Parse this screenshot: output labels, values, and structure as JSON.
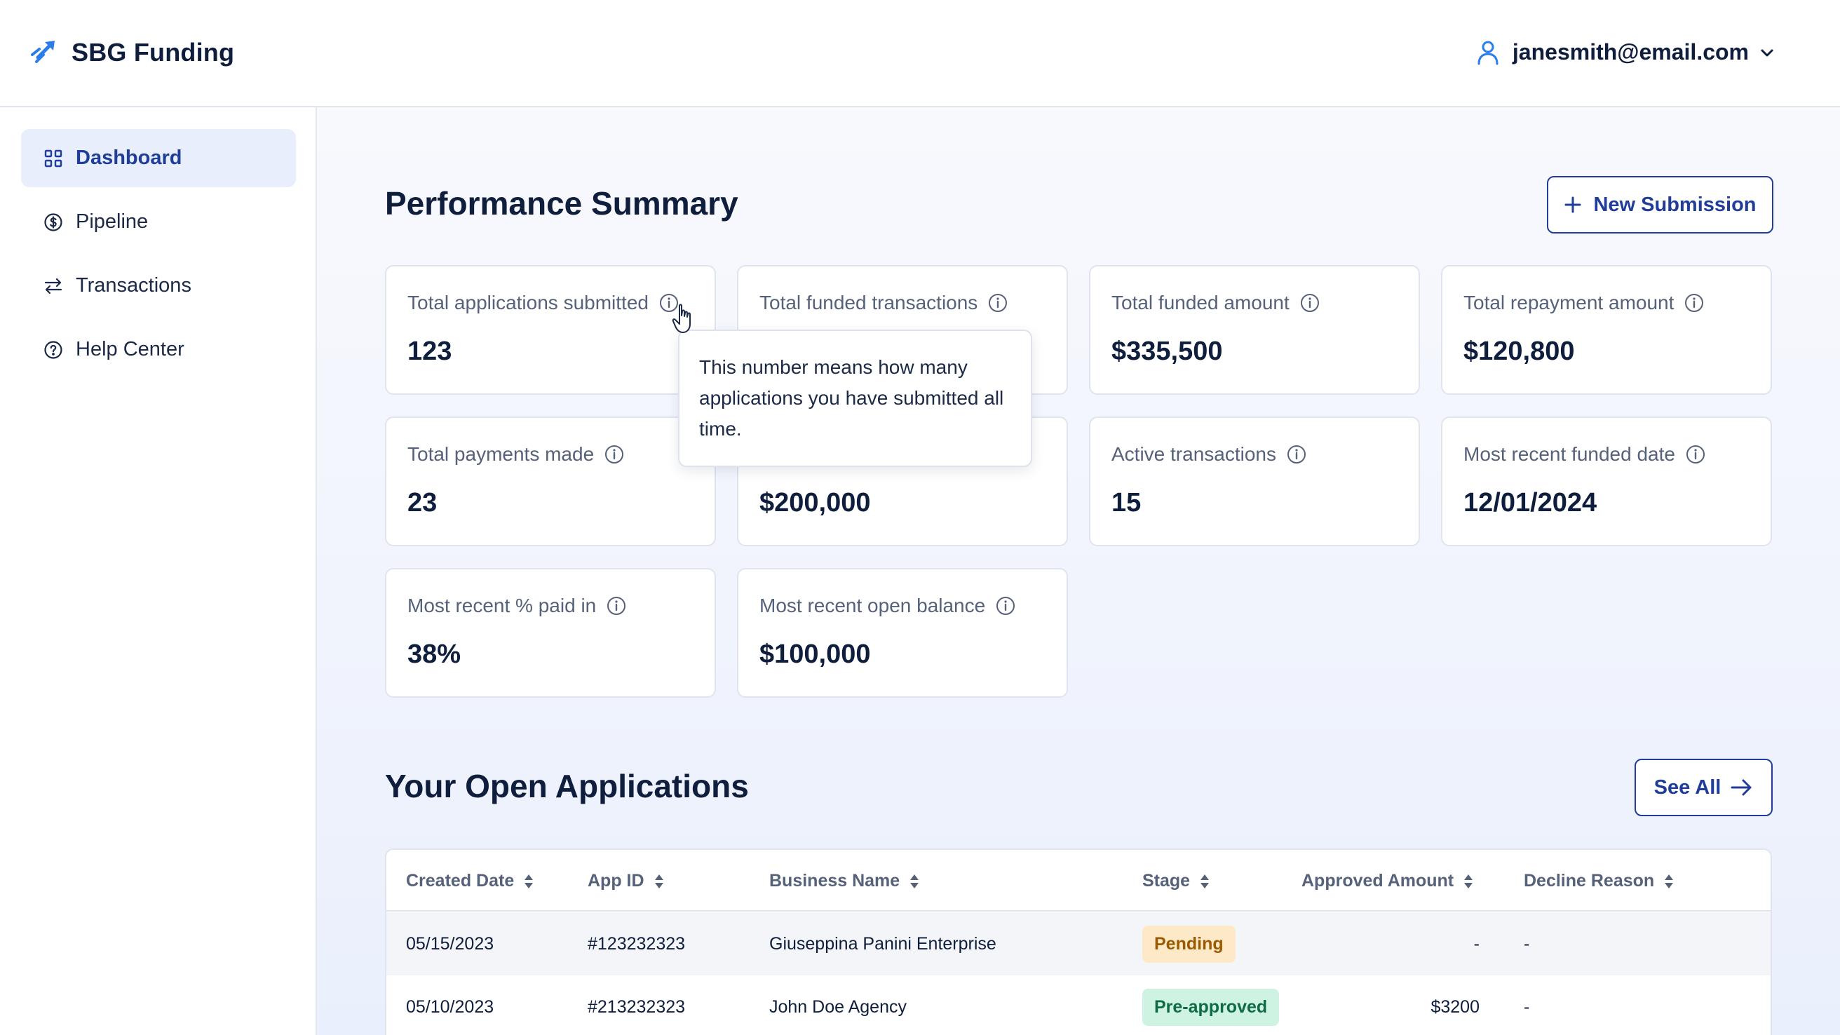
{
  "app": {
    "name": "SBG Funding"
  },
  "user": {
    "email": "janesmith@email.com"
  },
  "sidebar": {
    "items": [
      {
        "label": "Dashboard",
        "icon": "grid-icon",
        "active": true
      },
      {
        "label": "Pipeline",
        "icon": "dollar-circle-icon",
        "active": false
      },
      {
        "label": "Transactions",
        "icon": "arrows-exchange-icon",
        "active": false
      },
      {
        "label": "Help Center",
        "icon": "question-circle-icon",
        "active": false
      }
    ]
  },
  "performance": {
    "title": "Performance Summary",
    "new_submission_label": "New Submission",
    "cards": [
      {
        "label": "Total applications submitted",
        "value": "123"
      },
      {
        "label": "Total funded transactions",
        "value": ""
      },
      {
        "label": "Total funded amount",
        "value": "$335,500"
      },
      {
        "label": "Total repayment amount",
        "value": "$120,800"
      },
      {
        "label": "Total payments made",
        "value": "23"
      },
      {
        "label": "",
        "value": "$200,000"
      },
      {
        "label": "Active transactions",
        "value": "15"
      },
      {
        "label": "Most recent funded date",
        "value": "12/01/2024"
      },
      {
        "label": "Most recent % paid in",
        "value": "38%"
      },
      {
        "label": "Most recent open balance",
        "value": "$100,000"
      }
    ],
    "tooltip": "This number means how many applications you have submitted all time."
  },
  "applications": {
    "title": "Your Open Applications",
    "see_all_label": "See All",
    "columns": [
      "Created Date",
      "App ID",
      "Business Name",
      "Stage",
      "Approved Amount",
      "Decline Reason"
    ],
    "rows": [
      {
        "created_date": "05/15/2023",
        "app_id": "#123232323",
        "business_name": "Giuseppina Panini Enterprise",
        "stage": "Pending",
        "approved_amount": "-",
        "decline_reason": "-"
      },
      {
        "created_date": "05/10/2023",
        "app_id": "#213232323",
        "business_name": "John Doe Agency",
        "stage": "Pre-approved",
        "approved_amount": "$3200",
        "decline_reason": "-"
      }
    ]
  },
  "colors": {
    "brand": "#1f3d99",
    "accent": "#2b7de9",
    "pending_bg": "#fde9c8",
    "preapproved_bg": "#cff3e2"
  }
}
